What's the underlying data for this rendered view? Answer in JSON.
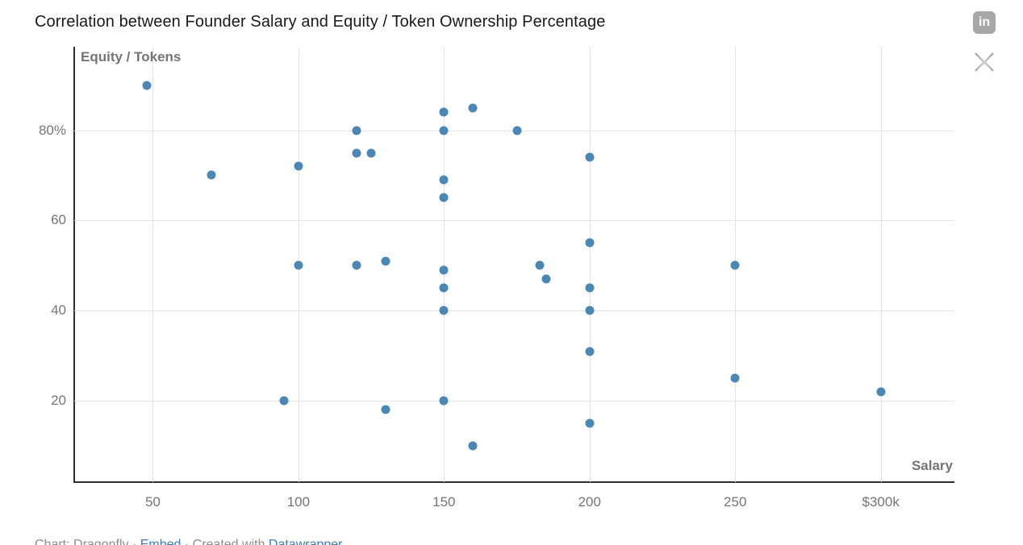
{
  "header": {
    "title": "Correlation between Founder Salary and Equity / Token Ownership Percentage"
  },
  "share": {
    "linkedin_glyph": "in"
  },
  "chart_data": {
    "type": "scatter",
    "title": "Correlation between Founder Salary and Equity / Token Ownership Percentage",
    "xlabel": "Salary",
    "ylabel": "Equity / Tokens",
    "x_axis": {
      "min": 23,
      "max": 325.3,
      "ticks": [
        {
          "value": 50,
          "label": "50"
        },
        {
          "value": 100,
          "label": "100"
        },
        {
          "value": 150,
          "label": "150"
        },
        {
          "value": 200,
          "label": "200"
        },
        {
          "value": 250,
          "label": "250"
        },
        {
          "value": 300,
          "label": "$300k"
        }
      ]
    },
    "y_axis": {
      "min": 2,
      "max": 98.5,
      "ticks": [
        {
          "value": 80,
          "label": "80%"
        },
        {
          "value": 60,
          "label": "60"
        },
        {
          "value": 40,
          "label": "40"
        },
        {
          "value": 20,
          "label": "20"
        }
      ]
    },
    "grid": true,
    "point_color": "#4a87b5",
    "points": [
      [
        48,
        90
      ],
      [
        70,
        70
      ],
      [
        95,
        20
      ],
      [
        100,
        72
      ],
      [
        100,
        50
      ],
      [
        120,
        80
      ],
      [
        120,
        75
      ],
      [
        120,
        50
      ],
      [
        125,
        75
      ],
      [
        130,
        51
      ],
      [
        130,
        18
      ],
      [
        150,
        84
      ],
      [
        150,
        80
      ],
      [
        150,
        69
      ],
      [
        150,
        65
      ],
      [
        150,
        49
      ],
      [
        150,
        45
      ],
      [
        150,
        40
      ],
      [
        150,
        20
      ],
      [
        160,
        85
      ],
      [
        160,
        10
      ],
      [
        175,
        80
      ],
      [
        183,
        50
      ],
      [
        185,
        47
      ],
      [
        200,
        74
      ],
      [
        200,
        55
      ],
      [
        200,
        45
      ],
      [
        200,
        40
      ],
      [
        200,
        31
      ],
      [
        200,
        15
      ],
      [
        250,
        50
      ],
      [
        250,
        25
      ],
      [
        300,
        22
      ]
    ]
  },
  "footer": {
    "prefix": "Chart: Dragonfly · ",
    "embed_link": "Embed",
    "middle": " · Created with ",
    "datawrapper_link": "Datawrapper"
  },
  "colors": {
    "point": "#4a87b5",
    "link": "#3a7cc1",
    "icon_gray": "#a7a7a7",
    "axis_text": "#757575"
  }
}
